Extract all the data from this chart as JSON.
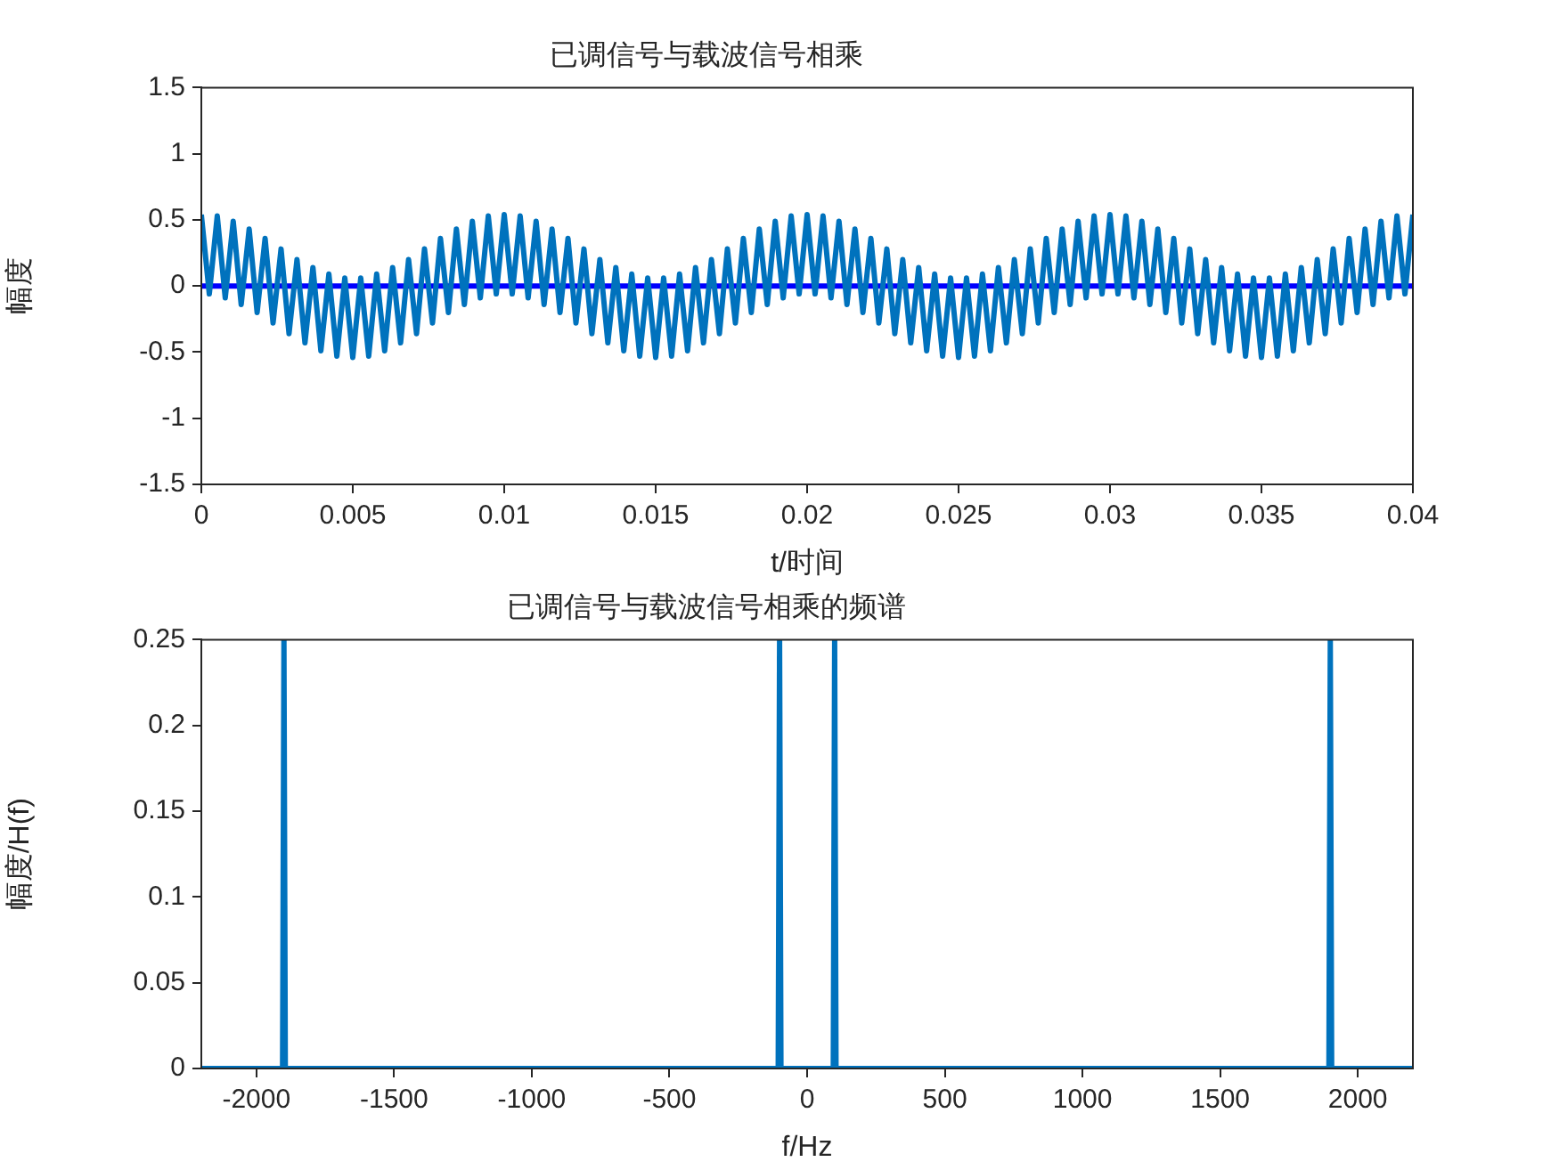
{
  "chart_data": [
    {
      "type": "line",
      "title": "已调信号与载波信号相乘",
      "xlabel": "t/时间",
      "ylabel": "幅度",
      "xlim": [
        0,
        0.04
      ],
      "xticks": [
        0,
        0.005,
        0.01,
        0.015,
        0.02,
        0.025,
        0.03,
        0.035,
        0.04
      ],
      "ylim": [
        -1.5,
        1.5
      ],
      "yticks": [
        -1.5,
        -1,
        -0.5,
        0,
        0.5,
        1,
        1.5
      ],
      "series": [
        {
          "color": "#0072bd",
          "x": [
            0,
            0.000263,
            0.000526,
            0.000789,
            0.001053,
            0.001316,
            0.001579,
            0.001842,
            0.002105,
            0.002368,
            0.002632,
            0.002895,
            0.003158,
            0.003421,
            0.003684,
            0.003947,
            0.004211,
            0.004474,
            0.004737,
            0.005,
            0.005263,
            0.005526,
            0.005789,
            0.006053,
            0.006316,
            0.006579,
            0.006842,
            0.007105,
            0.007368,
            0.007632,
            0.007895,
            0.008158,
            0.008421,
            0.008684,
            0.008947,
            0.009211,
            0.009474,
            0.009737,
            0.01,
            0.010263,
            0.010526,
            0.010789,
            0.011053,
            0.011316,
            0.011579,
            0.011842,
            0.012105,
            0.012368,
            0.012632,
            0.012895,
            0.013158,
            0.013421,
            0.013684,
            0.013947,
            0.014211,
            0.014474,
            0.014737,
            0.015,
            0.015263,
            0.015526,
            0.015789,
            0.016053,
            0.016316,
            0.016579,
            0.016842,
            0.017105,
            0.017368,
            0.017632,
            0.017895,
            0.018158,
            0.018421,
            0.018684,
            0.018947,
            0.019211,
            0.019474,
            0.019737,
            0.02,
            0.020263,
            0.020526,
            0.020789,
            0.021053,
            0.021316,
            0.021579,
            0.021842,
            0.022105,
            0.022368,
            0.022632,
            0.022895,
            0.023158,
            0.023421,
            0.023684,
            0.023947,
            0.024211,
            0.024474,
            0.024737,
            0.025,
            0.025263,
            0.025526,
            0.025789,
            0.026053,
            0.026316,
            0.026579,
            0.026842,
            0.027105,
            0.027368,
            0.027632,
            0.027895,
            0.028158,
            0.028421,
            0.028684,
            0.028947,
            0.029211,
            0.029474,
            0.029737,
            0.03,
            0.030263,
            0.030526,
            0.030789,
            0.031053,
            0.031316,
            0.031579,
            0.031842,
            0.032105,
            0.032368,
            0.032632,
            0.032895,
            0.033158,
            0.033421,
            0.033684,
            0.033947,
            0.034211,
            0.034474,
            0.034737,
            0.035,
            0.035263,
            0.035526,
            0.035789,
            0.036053,
            0.036316,
            0.036579,
            0.036842,
            0.037105,
            0.037368,
            0.037632,
            0.037895,
            0.038158,
            0.038421,
            0.038684,
            0.038947,
            0.039211,
            0.039474,
            0.039737,
            0.04
          ],
          "values": [
            0.54,
            -0.06,
            0.53,
            -0.09,
            0.49,
            -0.14,
            0.43,
            -0.2,
            0.36,
            -0.28,
            0.28,
            -0.36,
            0.2,
            -0.43,
            0.14,
            -0.49,
            0.09,
            -0.53,
            0.06,
            -0.54,
            0.06,
            -0.53,
            0.09,
            -0.49,
            0.14,
            -0.43,
            0.2,
            -0.36,
            0.28,
            -0.28,
            0.36,
            -0.2,
            0.43,
            -0.14,
            0.49,
            -0.09,
            0.53,
            -0.06,
            0.54,
            -0.06,
            0.53,
            -0.09,
            0.49,
            -0.14,
            0.43,
            -0.2,
            0.36,
            -0.28,
            0.28,
            -0.36,
            0.2,
            -0.43,
            0.14,
            -0.49,
            0.09,
            -0.53,
            0.06,
            -0.54,
            0.06,
            -0.53,
            0.09,
            -0.49,
            0.14,
            -0.43,
            0.2,
            -0.36,
            0.28,
            -0.28,
            0.36,
            -0.2,
            0.43,
            -0.14,
            0.49,
            -0.09,
            0.53,
            -0.06,
            0.54,
            -0.06,
            0.53,
            -0.09,
            0.49,
            -0.14,
            0.43,
            -0.2,
            0.36,
            -0.28,
            0.28,
            -0.36,
            0.2,
            -0.43,
            0.14,
            -0.49,
            0.09,
            -0.53,
            0.06,
            -0.54,
            0.06,
            -0.53,
            0.09,
            -0.49,
            0.14,
            -0.43,
            0.2,
            -0.36,
            0.28,
            -0.28,
            0.36,
            -0.2,
            0.43,
            -0.14,
            0.49,
            -0.09,
            0.53,
            -0.06,
            0.54,
            -0.06,
            0.53,
            -0.09,
            0.49,
            -0.14,
            0.43,
            -0.2,
            0.36,
            -0.28,
            0.28,
            -0.36,
            0.2,
            -0.43,
            0.14,
            -0.49,
            0.09,
            -0.53,
            0.06,
            -0.54,
            0.06,
            -0.53,
            0.09,
            -0.49,
            0.14,
            -0.43,
            0.2,
            -0.36,
            0.28,
            -0.28,
            0.36,
            -0.2,
            0.43,
            -0.14,
            0.49,
            -0.09,
            0.53,
            -0.06,
            0.54
          ]
        },
        {
          "color": "#0000ff",
          "x": [
            0,
            0.04
          ],
          "values": [
            0,
            0
          ]
        }
      ]
    },
    {
      "type": "line",
      "title": "已调信号与载波信号相乘的频谱",
      "xlabel": "f/Hz",
      "ylabel": "幅度/H(f)",
      "xlim": [
        -2200,
        2200
      ],
      "xticks": [
        -2000,
        -1500,
        -1000,
        -500,
        0,
        500,
        1000,
        1500,
        2000
      ],
      "ylim": [
        0,
        0.25
      ],
      "yticks": [
        0,
        0.05,
        0.1,
        0.15,
        0.2,
        0.25
      ],
      "series": [
        {
          "color": "#0072bd",
          "x": [
            -2200,
            -1905,
            -1900,
            -1895,
            -105,
            -100,
            -95,
            95,
            100,
            105,
            1895,
            1900,
            1905,
            2200
          ],
          "values": [
            0,
            0,
            0.25,
            0,
            0,
            0.25,
            0,
            0,
            0.25,
            0,
            0,
            0.25,
            0,
            0
          ]
        }
      ]
    }
  ]
}
